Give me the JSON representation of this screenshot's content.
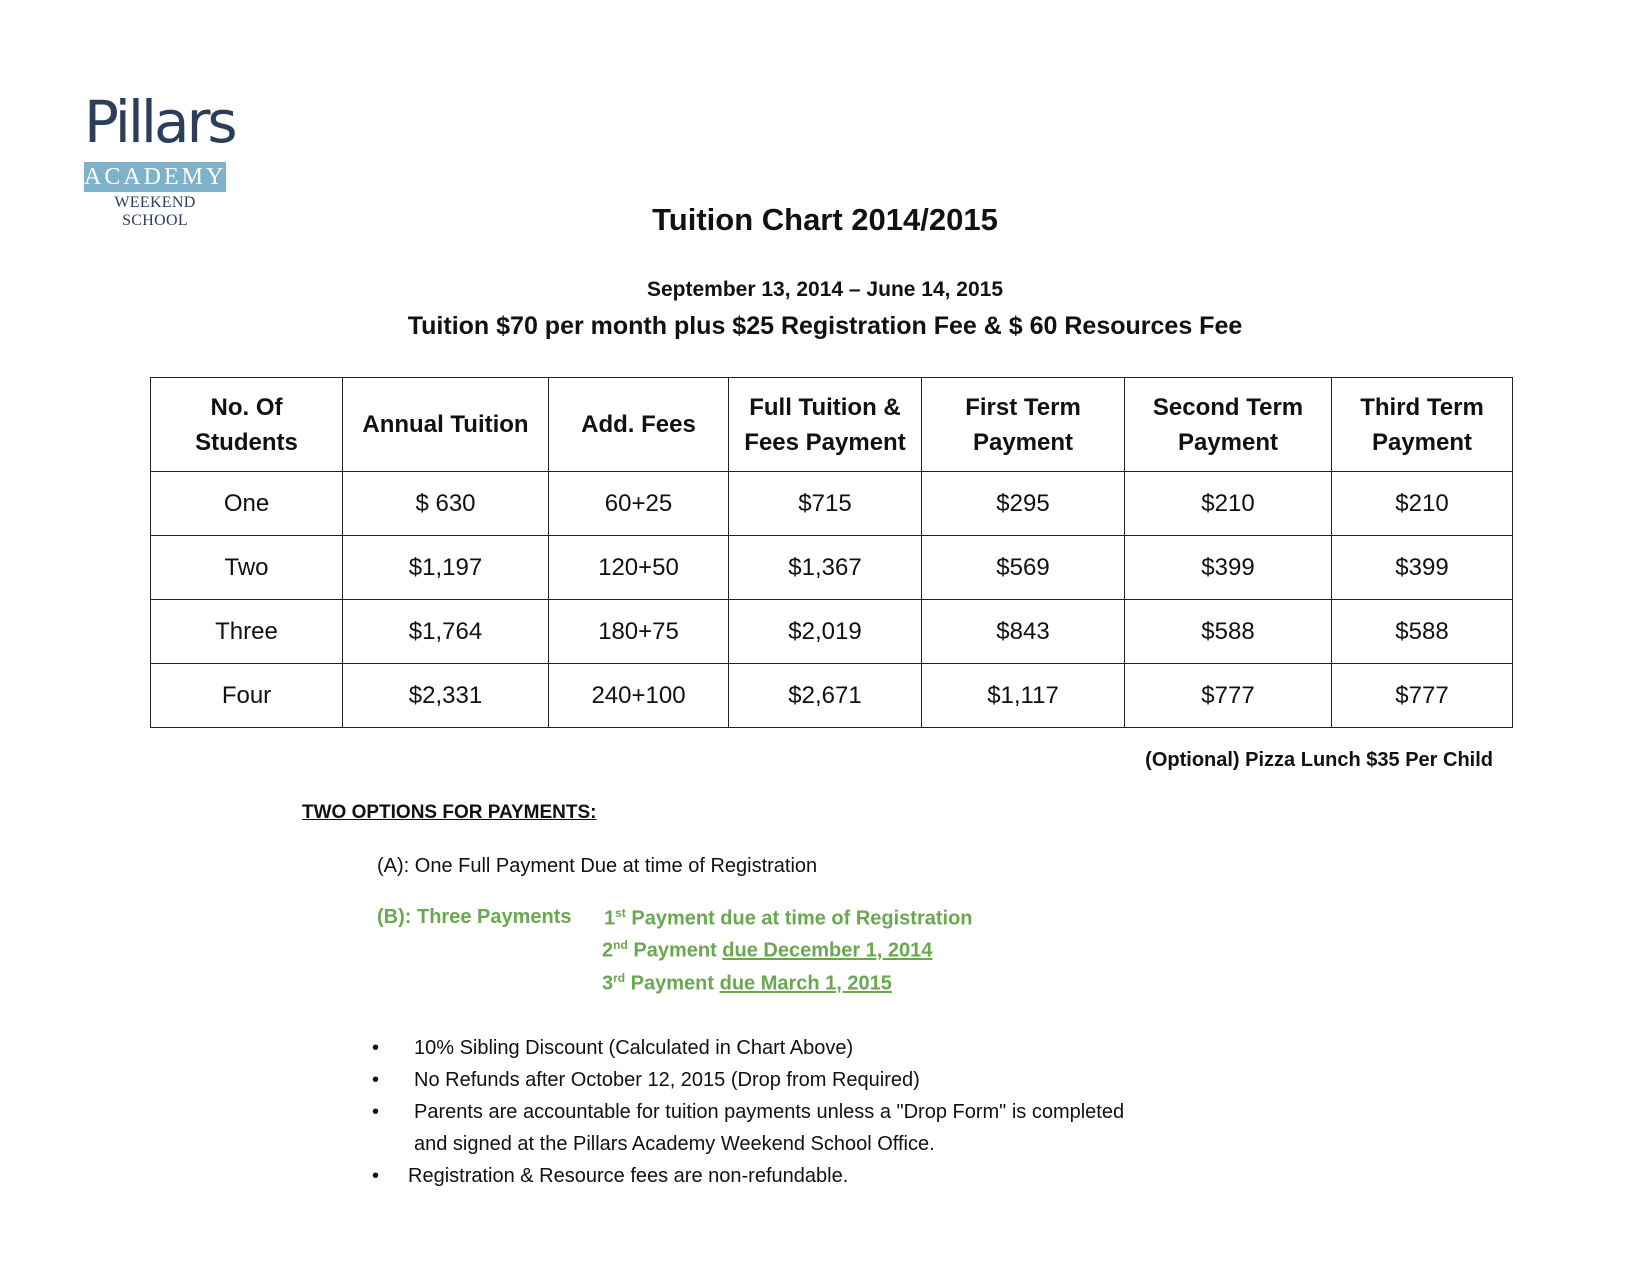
{
  "logo": {
    "word": "Pillars",
    "band": "ACADEMY",
    "sub": "WEEKEND SCHOOL"
  },
  "title": "Tuition Chart 2014/2015",
  "dates": "September 13, 2014 – June 14, 2015",
  "tuition_line": "Tuition $70 per month plus $25 Registration Fee & $ 60 Resources Fee",
  "table": {
    "headers": [
      [
        "No. Of",
        "Students"
      ],
      [
        "Annual Tuition"
      ],
      [
        "Add. Fees"
      ],
      [
        "Full Tuition &",
        "Fees Payment"
      ],
      [
        "First Term",
        "Payment"
      ],
      [
        "Second Term",
        "Payment"
      ],
      [
        "Third Term",
        "Payment"
      ]
    ],
    "rows": [
      [
        "One",
        "$ 630",
        "60+25",
        "$715",
        "$295",
        "$210",
        "$210"
      ],
      [
        "Two",
        "$1,197",
        "120+50",
        "$1,367",
        "$569",
        "$399",
        "$399"
      ],
      [
        "Three",
        "$1,764",
        "180+75",
        "$2,019",
        "$843",
        "$588",
        "$588"
      ],
      [
        "Four",
        "$2,331",
        "240+100",
        "$2,671",
        "$1,117",
        "$777",
        "$777"
      ]
    ]
  },
  "pizza": "(Optional) Pizza Lunch $35 Per Child",
  "options_title": "TWO OPTIONS FOR PAYMENTS:",
  "option_a": "(A): One Full Payment Due at time of Registration",
  "option_b": {
    "label": "(B): Three Payments",
    "p1_num": "1",
    "p1_sup": "st",
    "p1_text": " Payment due at time of Registration",
    "p2_num": "2",
    "p2_sup": "nd",
    "p2_text": " Payment ",
    "p2_date": "due December 1, 2014",
    "p3_num": "3",
    "p3_sup": "rd",
    "p3_text": " Payment ",
    "p3_date": "due March 1, 2015"
  },
  "bullets": {
    "b1": "10% Sibling Discount (Calculated in Chart Above)",
    "b2": "No Refunds after October 12, 2015 (Drop from Required)",
    "b3a": " Parents are accountable for tuition payments unless a \"Drop Form\" is completed",
    "b3b": "and signed at the Pillars Academy Weekend School Office.",
    "b4": "Registration & Resource  fees are non-refundable."
  }
}
